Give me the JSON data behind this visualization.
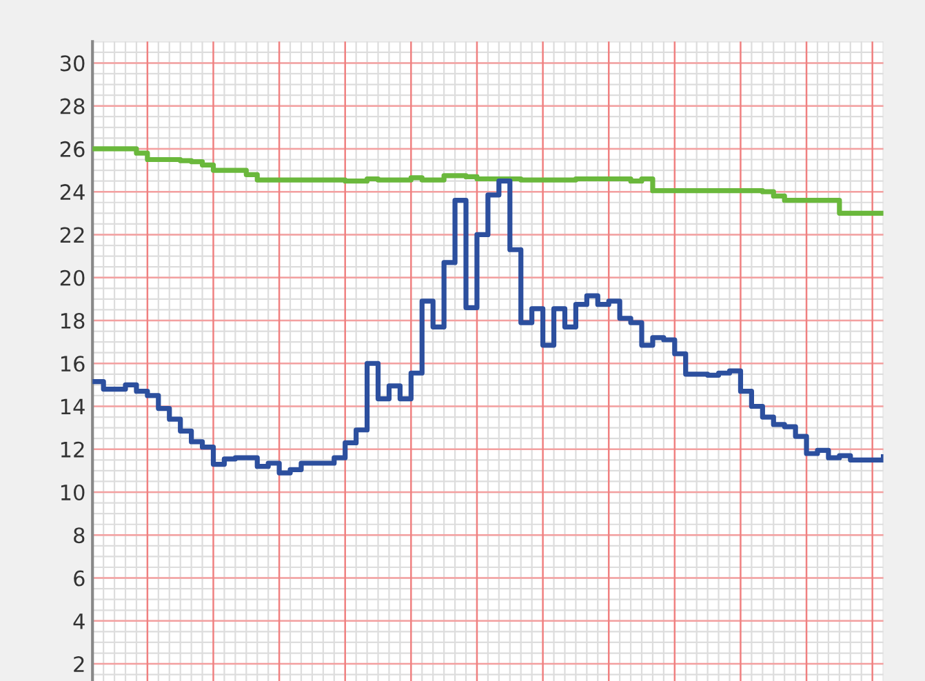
{
  "chart_data": {
    "type": "step",
    "categories": [
      null,
      null,
      null,
      null,
      null,
      null,
      null,
      null,
      null,
      null,
      null,
      null,
      null,
      null,
      null,
      null,
      null,
      null,
      null,
      null,
      null,
      null,
      null,
      null,
      null,
      null,
      null,
      null,
      null,
      null,
      null,
      null,
      null,
      null,
      null,
      null,
      null,
      null,
      null,
      null,
      null,
      null,
      null,
      null,
      null,
      null,
      null,
      null,
      null,
      null,
      null,
      null,
      null,
      null,
      null,
      null,
      null,
      null,
      null,
      null,
      null,
      null,
      null,
      null,
      null,
      null,
      null,
      null,
      null,
      null,
      null,
      null,
      null
    ],
    "series": [
      {
        "color": "#6ab83c",
        "values": [
          26.0,
          26.0,
          26.0,
          26.0,
          25.8,
          25.5,
          25.5,
          25.5,
          25.45,
          25.4,
          25.25,
          25.0,
          25.0,
          25.0,
          24.8,
          24.55,
          24.55,
          24.55,
          24.55,
          24.55,
          24.55,
          24.55,
          24.55,
          24.5,
          24.5,
          24.6,
          24.55,
          24.55,
          24.55,
          24.65,
          24.55,
          24.55,
          24.75,
          24.75,
          24.7,
          24.6,
          24.6,
          24.6,
          24.6,
          24.55,
          24.55,
          24.55,
          24.55,
          24.55,
          24.6,
          24.6,
          24.6,
          24.6,
          24.6,
          24.5,
          24.6,
          24.05,
          24.05,
          24.05,
          24.05,
          24.05,
          24.05,
          24.05,
          24.05,
          24.05,
          24.05,
          24.0,
          23.8,
          23.6,
          23.6,
          23.6,
          23.6,
          23.6,
          23.0,
          23.0,
          23.0,
          23.0,
          23.0
        ]
      },
      {
        "color": "#2c4f9e",
        "values": [
          15.15,
          14.8,
          14.8,
          15.0,
          14.7,
          14.5,
          13.9,
          13.4,
          12.85,
          12.35,
          12.1,
          11.3,
          11.55,
          11.6,
          11.6,
          11.2,
          11.35,
          10.9,
          11.05,
          11.35,
          11.35,
          11.35,
          11.6,
          12.3,
          12.9,
          16.0,
          14.35,
          14.95,
          14.35,
          15.55,
          18.9,
          17.7,
          20.7,
          23.6,
          18.6,
          22.0,
          23.85,
          24.5,
          21.3,
          17.9,
          18.55,
          16.85,
          18.55,
          17.7,
          18.75,
          19.15,
          18.75,
          18.9,
          18.1,
          17.9,
          16.85,
          17.2,
          17.1,
          16.45,
          15.5,
          15.5,
          15.45,
          15.55,
          15.65,
          14.7,
          14.0,
          13.5,
          13.15,
          13.05,
          12.6,
          11.8,
          11.95,
          11.6,
          11.7,
          11.5,
          11.5,
          11.5,
          11.65
        ]
      }
    ],
    "ylim": [
      1.2,
      31
    ],
    "yticks": [
      2,
      4,
      6,
      8,
      10,
      12,
      14,
      16,
      18,
      20,
      22,
      24,
      26,
      28,
      30
    ],
    "grid": true,
    "tick_labels": "y",
    "legend": false
  }
}
